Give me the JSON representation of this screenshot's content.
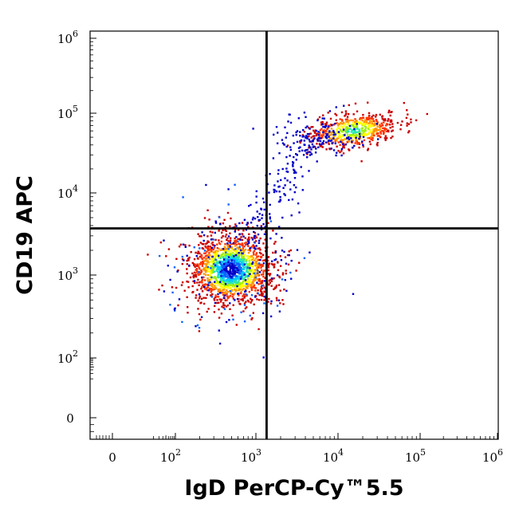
{
  "chart_data": {
    "type": "scatter",
    "style": "density dot plot (pseudocolor)",
    "xlabel": "IgD PerCP-Cy™5.5",
    "ylabel": "CD19 APC",
    "x_scale": "biexponential",
    "y_scale": "biexponential",
    "xlim": [
      -300,
      1000000
    ],
    "ylim": [
      -150,
      1000000
    ],
    "x_ticks": [
      {
        "value": 0,
        "base": "0",
        "exp": ""
      },
      {
        "value": 100,
        "base": "10",
        "exp": "2"
      },
      {
        "value": 1000,
        "base": "10",
        "exp": "3"
      },
      {
        "value": 10000,
        "base": "10",
        "exp": "4"
      },
      {
        "value": 100000,
        "base": "10",
        "exp": "5"
      },
      {
        "value": 1000000,
        "base": "10",
        "exp": "6"
      }
    ],
    "y_ticks": [
      {
        "value": 0,
        "base": "0",
        "exp": ""
      },
      {
        "value": 100,
        "base": "10",
        "exp": "2"
      },
      {
        "value": 1000,
        "base": "10",
        "exp": "3"
      },
      {
        "value": 10000,
        "base": "10",
        "exp": "4"
      },
      {
        "value": 100000,
        "base": "10",
        "exp": "5"
      },
      {
        "value": 1000000,
        "base": "10",
        "exp": "6"
      }
    ],
    "quadrant_gate": {
      "x": 1350,
      "y": 3700
    },
    "populations": [
      {
        "center_x": 480,
        "center_y": 1200,
        "density": "high"
      },
      {
        "center_x": 15000,
        "center_y": 62000,
        "density": "medium"
      },
      {
        "center_x": 1500,
        "center_y": 15000,
        "density": "low"
      }
    ],
    "density_colors": [
      "#0000c8",
      "#0a64ff",
      "#00c8ff",
      "#28e6b4",
      "#a0f000",
      "#ffff00",
      "#ff9600",
      "#ff3200",
      "#c80000"
    ],
    "grid": false
  }
}
